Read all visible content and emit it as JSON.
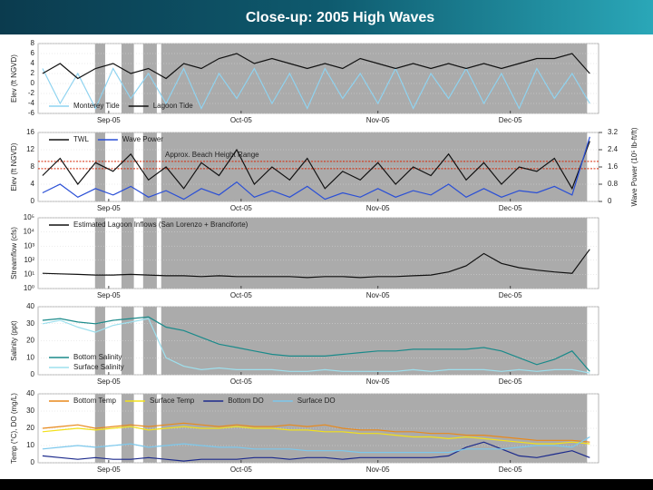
{
  "title": "Close-up: 2005 High Waves",
  "shaded_spans": [
    [
      -3.1,
      -0.8
    ],
    [
      2.9,
      5.7
    ],
    [
      7.8,
      10.9
    ],
    [
      11.9,
      108.4
    ]
  ],
  "chart_data": [
    {
      "type": "line",
      "ylabel": "Elev (ft NGVD)",
      "legend": "lower left",
      "x": [
        -15,
        -11,
        -7,
        -3,
        1,
        5,
        9,
        13,
        17,
        21,
        25,
        29,
        33,
        37,
        41,
        45,
        49,
        53,
        57,
        61,
        65,
        69,
        73,
        77,
        81,
        85,
        89,
        93,
        97,
        101,
        105,
        109
      ],
      "xlim": [
        -16,
        111
      ],
      "xticks": [
        {
          "value": 0,
          "label": "Sep-05"
        },
        {
          "value": 30,
          "label": "Oct-05"
        },
        {
          "value": 61,
          "label": "Nov-05"
        },
        {
          "value": 91,
          "label": "Dec-05"
        }
      ],
      "ylim": [
        -6,
        8
      ],
      "yticks": [
        -6,
        -4,
        -2,
        0,
        2,
        4,
        6,
        8
      ],
      "grid": true,
      "series": [
        {
          "name": "Monterey Tide",
          "color": "#8fd3f0",
          "values": [
            3,
            -4,
            2,
            -5,
            3,
            -3,
            2,
            -4,
            3,
            -5,
            2,
            -3,
            3,
            -4,
            2,
            -5,
            3,
            -3,
            2,
            -4,
            3,
            -5,
            2,
            -3,
            3,
            -4,
            2,
            -5,
            3,
            -3,
            2,
            -4
          ]
        },
        {
          "name": "Lagoon Tide",
          "color": "#111111",
          "values": [
            2,
            4,
            1,
            3,
            4,
            2,
            3,
            1,
            4,
            3,
            5,
            6,
            4,
            5,
            4,
            3,
            4,
            3,
            5,
            4,
            3,
            4,
            3,
            4,
            3,
            4,
            3,
            4,
            5,
            5,
            6,
            2
          ]
        }
      ]
    },
    {
      "type": "line",
      "ylabel": "Elev (ft NGVD)",
      "y2label": "Wave Power (10⁵ lb-ft/ft)",
      "legend": "upper left",
      "annotation": "Approx. Beach Height Range",
      "beach_range": [
        7.6,
        9.3
      ],
      "x": [
        -15,
        -11,
        -7,
        -3,
        1,
        5,
        9,
        13,
        17,
        21,
        25,
        29,
        33,
        37,
        41,
        45,
        49,
        53,
        57,
        61,
        65,
        69,
        73,
        77,
        81,
        85,
        89,
        93,
        97,
        101,
        105,
        109
      ],
      "xlim": [
        -16,
        111
      ],
      "xticks": [
        {
          "value": 0,
          "label": "Sep-05"
        },
        {
          "value": 30,
          "label": "Oct-05"
        },
        {
          "value": 61,
          "label": "Nov-05"
        },
        {
          "value": 91,
          "label": "Dec-05"
        }
      ],
      "ylim": [
        0,
        16
      ],
      "yticks": [
        0,
        4,
        8,
        12,
        16
      ],
      "y2lim": [
        0,
        3.2
      ],
      "y2ticks": [
        0,
        0.8,
        1.6,
        2.4,
        3.2
      ],
      "grid": true,
      "series": [
        {
          "name": "TWL",
          "color": "#111111",
          "values": [
            6,
            10,
            4,
            9,
            7,
            11,
            5,
            8,
            3,
            9,
            6,
            12,
            4,
            8,
            5,
            10,
            3,
            7,
            5,
            9,
            4,
            8,
            6,
            11,
            5,
            9,
            4,
            8,
            7,
            10,
            3,
            14
          ]
        },
        {
          "name": "Wave Power",
          "color": "#2a4fd6",
          "axis": "y2",
          "values": [
            0.4,
            0.8,
            0.2,
            0.6,
            0.3,
            0.7,
            0.2,
            0.5,
            0.1,
            0.6,
            0.3,
            0.9,
            0.2,
            0.5,
            0.2,
            0.7,
            0.1,
            0.4,
            0.2,
            0.6,
            0.2,
            0.5,
            0.3,
            0.8,
            0.2,
            0.6,
            0.2,
            0.5,
            0.4,
            0.7,
            0.3,
            3
          ]
        }
      ]
    },
    {
      "type": "line",
      "ylabel": "Streamflow (cfs)",
      "legend": "upper left",
      "log": true,
      "x": [
        -15,
        -11,
        -7,
        -3,
        1,
        5,
        9,
        13,
        17,
        21,
        25,
        29,
        33,
        37,
        41,
        45,
        49,
        53,
        57,
        61,
        65,
        69,
        73,
        77,
        81,
        85,
        89,
        93,
        97,
        101,
        105,
        109
      ],
      "xlim": [
        -16,
        111
      ],
      "xticks": [
        {
          "value": 0,
          "label": "Sep-05"
        },
        {
          "value": 30,
          "label": "Oct-05"
        },
        {
          "value": 61,
          "label": "Nov-05"
        },
        {
          "value": 91,
          "label": "Dec-05"
        }
      ],
      "ylim": [
        1,
        100000
      ],
      "yticks": [
        {
          "value": 1,
          "label": "10⁰"
        },
        {
          "value": 10,
          "label": "10¹"
        },
        {
          "value": 100,
          "label": "10²"
        },
        {
          "value": 1000,
          "label": "10³"
        },
        {
          "value": 10000,
          "label": "10⁴"
        },
        {
          "value": 100000,
          "label": "10⁵"
        }
      ],
      "grid": true,
      "series": [
        {
          "name": "Estimated Lagoon Inflows (San Lorenzo + Branciforte)",
          "color": "#111111",
          "values": [
            12,
            11,
            10,
            9,
            9,
            10,
            9,
            8,
            8,
            7,
            8,
            7,
            7,
            7,
            7,
            6,
            7,
            7,
            6,
            7,
            7,
            8,
            9,
            15,
            40,
            300,
            60,
            30,
            20,
            15,
            12,
            600
          ]
        }
      ]
    },
    {
      "type": "line",
      "ylabel": "Salinity (ppt)",
      "legend": "lower left",
      "legend_direction": "vertical",
      "x": [
        -15,
        -11,
        -7,
        -3,
        1,
        5,
        9,
        13,
        17,
        21,
        25,
        29,
        33,
        37,
        41,
        45,
        49,
        53,
        57,
        61,
        65,
        69,
        73,
        77,
        81,
        85,
        89,
        93,
        97,
        101,
        105,
        109
      ],
      "xlim": [
        -16,
        111
      ],
      "xticks": [
        {
          "value": 0,
          "label": "Sep-05"
        },
        {
          "value": 30,
          "label": "Oct-05"
        },
        {
          "value": 61,
          "label": "Nov-05"
        },
        {
          "value": 91,
          "label": "Dec-05"
        }
      ],
      "ylim": [
        0,
        40
      ],
      "yticks": [
        0,
        10,
        20,
        30,
        40
      ],
      "grid": true,
      "series": [
        {
          "name": "Bottom Salinity",
          "color": "#1a8a8a",
          "values": [
            32,
            33,
            31,
            30,
            32,
            33,
            34,
            28,
            26,
            22,
            18,
            16,
            14,
            12,
            11,
            11,
            11,
            12,
            13,
            14,
            14,
            15,
            15,
            15,
            15,
            16,
            14,
            10,
            6,
            9,
            14,
            2
          ]
        },
        {
          "name": "Surface Salinity",
          "color": "#9ee0ee",
          "values": [
            30,
            32,
            28,
            25,
            29,
            31,
            33,
            10,
            5,
            3,
            4,
            3,
            3,
            3,
            2,
            2,
            3,
            2,
            2,
            2,
            2,
            3,
            2,
            3,
            3,
            3,
            2,
            3,
            2,
            3,
            3,
            1
          ]
        }
      ]
    },
    {
      "type": "line",
      "ylabel": "Temp (°C), DO (mg/L)",
      "legend": "upper left",
      "x": [
        -15,
        -11,
        -7,
        -3,
        1,
        5,
        9,
        13,
        17,
        21,
        25,
        29,
        33,
        37,
        41,
        45,
        49,
        53,
        57,
        61,
        65,
        69,
        73,
        77,
        81,
        85,
        89,
        93,
        97,
        101,
        105,
        109
      ],
      "xlim": [
        -16,
        111
      ],
      "xticks": [
        {
          "value": 0,
          "label": "Sep-05"
        },
        {
          "value": 30,
          "label": "Oct-05"
        },
        {
          "value": 61,
          "label": "Nov-05"
        },
        {
          "value": 91,
          "label": "Dec-05"
        }
      ],
      "ylim": [
        0,
        40
      ],
      "yticks": [
        0,
        10,
        20,
        30,
        40
      ],
      "grid": true,
      "series": [
        {
          "name": "Bottom Temp",
          "color": "#e8891c",
          "values": [
            20,
            21,
            22,
            20,
            21,
            22,
            21,
            22,
            23,
            22,
            21,
            22,
            21,
            21,
            22,
            21,
            22,
            20,
            19,
            19,
            18,
            18,
            17,
            17,
            16,
            16,
            15,
            14,
            13,
            13,
            13,
            12
          ]
        },
        {
          "name": "Surface Temp",
          "color": "#f2e01a",
          "values": [
            18,
            19,
            20,
            19,
            20,
            21,
            19,
            20,
            21,
            20,
            20,
            21,
            20,
            20,
            19,
            19,
            18,
            18,
            17,
            17,
            16,
            15,
            15,
            14,
            15,
            14,
            13,
            12,
            11,
            11,
            12,
            11
          ]
        },
        {
          "name": "Bottom DO",
          "color": "#1c2a8c",
          "values": [
            4,
            3,
            2,
            3,
            2,
            2,
            3,
            2,
            1,
            2,
            2,
            2,
            3,
            3,
            2,
            3,
            3,
            2,
            3,
            3,
            3,
            3,
            3,
            4,
            9,
            12,
            8,
            4,
            3,
            5,
            7,
            3
          ]
        },
        {
          "name": "Surface DO",
          "color": "#7cc8ec",
          "values": [
            8,
            9,
            10,
            9,
            10,
            11,
            9,
            10,
            11,
            10,
            9,
            9,
            8,
            8,
            8,
            7,
            7,
            7,
            6,
            6,
            6,
            6,
            6,
            6,
            8,
            8,
            8,
            9,
            10,
            10,
            9,
            15
          ]
        }
      ]
    }
  ]
}
